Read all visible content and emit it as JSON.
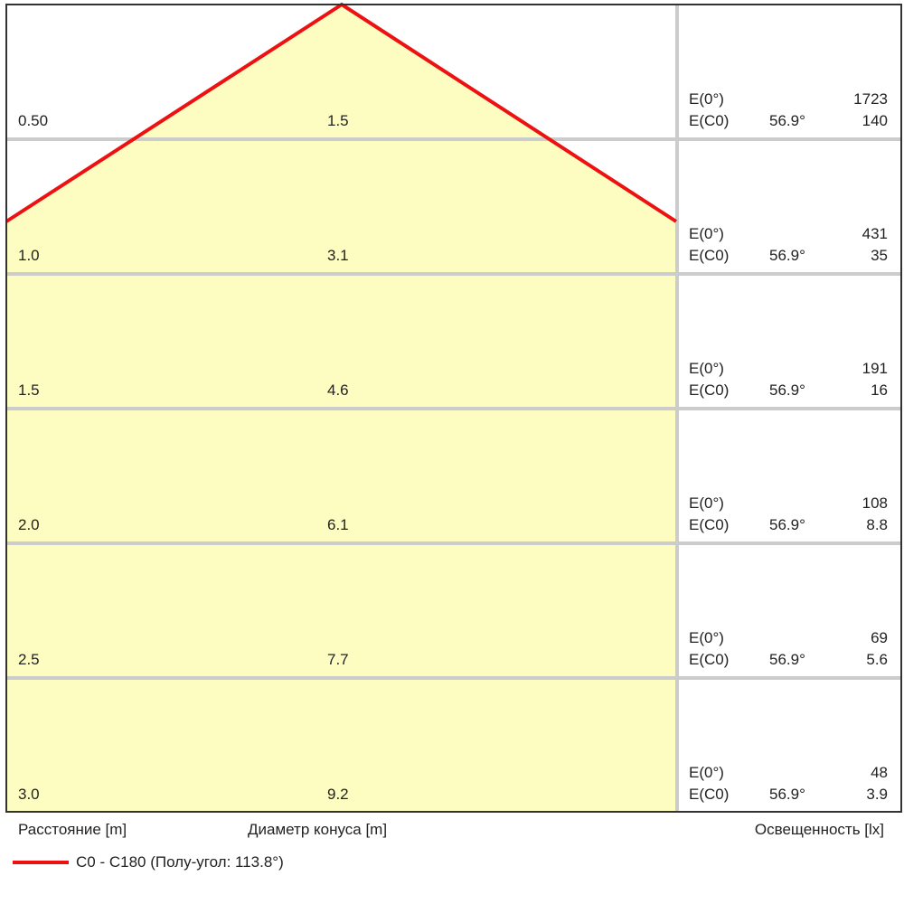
{
  "rows": [
    {
      "distance": "0.50",
      "diameter": "1.5",
      "e0_label": "E(0°)",
      "e0_value": "1723",
      "ec0_label": "E(C0)",
      "ec0_angle": "56.9°",
      "ec0_value": "140"
    },
    {
      "distance": "1.0",
      "diameter": "3.1",
      "e0_label": "E(0°)",
      "e0_value": "431",
      "ec0_label": "E(C0)",
      "ec0_angle": "56.9°",
      "ec0_value": "35"
    },
    {
      "distance": "1.5",
      "diameter": "4.6",
      "e0_label": "E(0°)",
      "e0_value": "191",
      "ec0_label": "E(C0)",
      "ec0_angle": "56.9°",
      "ec0_value": "16"
    },
    {
      "distance": "2.0",
      "diameter": "6.1",
      "e0_label": "E(0°)",
      "e0_value": "108",
      "ec0_label": "E(C0)",
      "ec0_angle": "56.9°",
      "ec0_value": "8.8"
    },
    {
      "distance": "2.5",
      "diameter": "7.7",
      "e0_label": "E(0°)",
      "e0_value": "69",
      "ec0_label": "E(C0)",
      "ec0_angle": "56.9°",
      "ec0_value": "5.6"
    },
    {
      "distance": "3.0",
      "diameter": "9.2",
      "e0_label": "E(0°)",
      "e0_value": "48",
      "ec0_label": "E(C0)",
      "ec0_angle": "56.9°",
      "ec0_value": "3.9"
    }
  ],
  "labels": {
    "distance": "Расстояние [m]",
    "diameter": "Диаметр конуса [m]",
    "illuminance": "Освещенность [lx]"
  },
  "legend": {
    "label": "C0 - C180 (Полу-угол: 113.8°)",
    "color": "#ee1111"
  },
  "colors": {
    "cone_fill": "#fdfdc2",
    "grid": "#cccccc",
    "frame": "#333333"
  }
}
